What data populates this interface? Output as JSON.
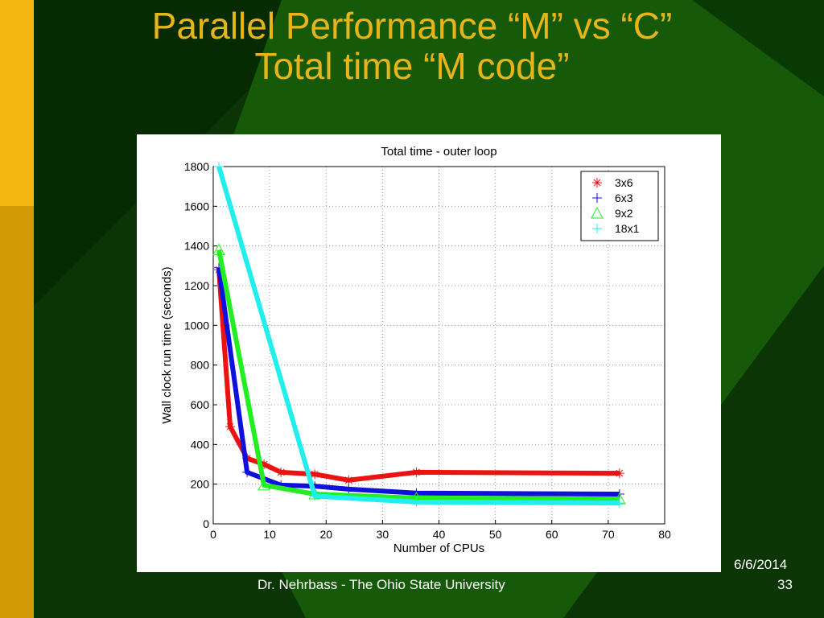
{
  "slide": {
    "title_line1": "Parallel Performance “M” vs “C”",
    "title_line2": "Total time “M code”",
    "footer": "Dr. Nehrbass - The Ohio State University",
    "date": "6/6/2014",
    "page": "33"
  },
  "chart_data": {
    "type": "line",
    "title": "Total time - outer loop",
    "xlabel": "Number of CPUs",
    "ylabel": "Wall clock run time (seconds)",
    "xlim": [
      0,
      80
    ],
    "ylim": [
      0,
      1800
    ],
    "xticks": [
      0,
      10,
      20,
      30,
      40,
      50,
      60,
      70,
      80
    ],
    "yticks": [
      0,
      200,
      400,
      600,
      800,
      1000,
      1200,
      1400,
      1600,
      1800
    ],
    "grid": true,
    "legend_position": "top-right",
    "series": [
      {
        "name": "3x6",
        "color": "#ee1111",
        "marker": "*",
        "x": [
          1,
          3,
          6,
          9,
          12,
          18,
          24,
          36,
          72
        ],
        "y": [
          1280,
          490,
          330,
          300,
          260,
          250,
          220,
          260,
          255
        ]
      },
      {
        "name": "6x3",
        "color": "#1010dd",
        "marker": "+",
        "x": [
          1,
          6,
          12,
          18,
          24,
          36,
          72
        ],
        "y": [
          1290,
          260,
          195,
          190,
          175,
          155,
          150
        ]
      },
      {
        "name": "9x2",
        "color": "#22ee22",
        "marker": "triangle",
        "x": [
          1,
          9,
          18,
          36,
          72
        ],
        "y": [
          1380,
          195,
          150,
          130,
          125
        ]
      },
      {
        "name": "18x1",
        "color": "#22eeee",
        "marker": "+",
        "x": [
          1,
          18,
          36,
          72
        ],
        "y": [
          1800,
          140,
          110,
          105
        ]
      }
    ]
  }
}
